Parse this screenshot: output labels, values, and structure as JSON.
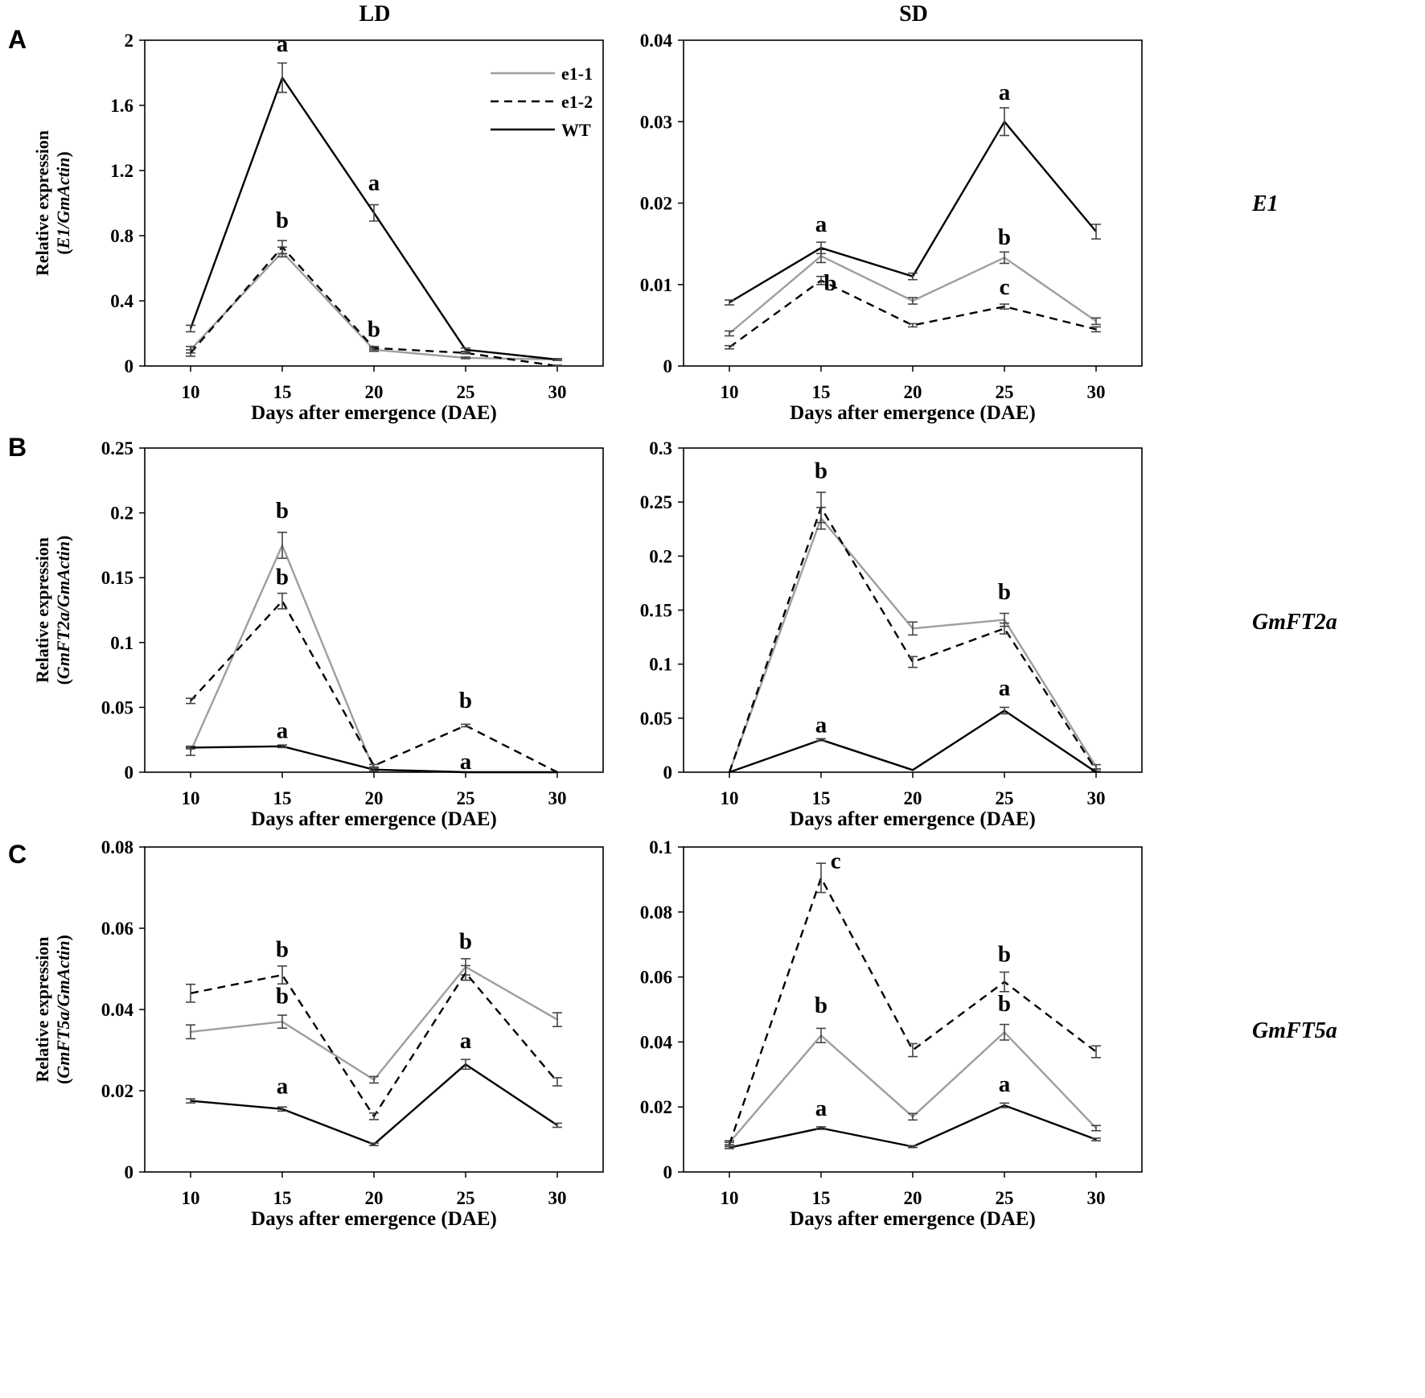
{
  "column_titles": {
    "left": "LD",
    "right": "SD"
  },
  "panel_letters": [
    "A",
    "B",
    "C"
  ],
  "gene_labels": [
    "E1",
    "GmFT2a",
    "GmFT5a"
  ],
  "legend": [
    {
      "name": "e1-1",
      "style": "solid",
      "color": "#9e9e9e"
    },
    {
      "name": "e1-2",
      "style": "dashed",
      "color": "#000000"
    },
    {
      "name": "WT",
      "style": "solid",
      "color": "#000000"
    }
  ],
  "ylabel_prefix": "Relative expression",
  "chart_data": [
    {
      "id": "A-LD",
      "type": "line",
      "panel": "A",
      "condition": "LD",
      "gene": "E1",
      "xlabel": "Days after emergence (DAE)",
      "ylabel": "Relative expression (E1/GmActin)",
      "ylabel_gene": "E1",
      "ylabel_ref": "GmActin",
      "x": [
        10,
        15,
        20,
        25,
        30
      ],
      "ylim": [
        0,
        2
      ],
      "yticks": [
        0,
        0.4,
        0.8,
        1.2,
        1.6,
        2
      ],
      "ytick_labels": [
        "0",
        "0.4",
        "0.8",
        "1.2",
        "1.6",
        "2"
      ],
      "series": [
        {
          "name": "e1-1",
          "values": [
            0.1,
            0.7,
            0.1,
            0.05,
            0.04
          ],
          "errors": [
            0.02,
            0.03,
            0.01,
            0.005,
            0.005
          ]
        },
        {
          "name": "e1-2",
          "values": [
            0.08,
            0.73,
            0.11,
            0.08,
            0.0
          ],
          "errors": [
            0.02,
            0.04,
            0.01,
            0.005,
            0.005
          ]
        },
        {
          "name": "WT",
          "values": [
            0.23,
            1.77,
            0.94,
            0.1,
            0.04
          ],
          "errors": [
            0.02,
            0.09,
            0.05,
            0.01,
            0.005
          ]
        }
      ],
      "annotations": [
        {
          "text": "a",
          "x": 15,
          "y": 1.93
        },
        {
          "text": "b",
          "x": 15,
          "y": 0.85
        },
        {
          "text": "a",
          "x": 20,
          "y": 1.08
        },
        {
          "text": "b",
          "x": 20,
          "y": 0.18
        }
      ]
    },
    {
      "id": "A-SD",
      "type": "line",
      "panel": "A",
      "condition": "SD",
      "gene": "E1",
      "xlabel": "Days after emergence (DAE)",
      "ylabel": "",
      "x": [
        10,
        15,
        20,
        25,
        30
      ],
      "ylim": [
        0,
        0.04
      ],
      "yticks": [
        0,
        0.01,
        0.02,
        0.03,
        0.04
      ],
      "ytick_labels": [
        "0",
        "0.01",
        "0.02",
        "0.03",
        "0.04"
      ],
      "series": [
        {
          "name": "e1-1",
          "values": [
            0.004,
            0.0135,
            0.008,
            0.0133,
            0.0055
          ],
          "errors": [
            0.0003,
            0.0008,
            0.0004,
            0.0007,
            0.0004
          ]
        },
        {
          "name": "e1-2",
          "values": [
            0.0023,
            0.0105,
            0.005,
            0.0073,
            0.0045
          ],
          "errors": [
            0.0002,
            0.0005,
            0.0002,
            0.0003,
            0.0003
          ]
        },
        {
          "name": "WT",
          "values": [
            0.0078,
            0.0145,
            0.011,
            0.03,
            0.0165
          ],
          "errors": [
            0.0003,
            0.0007,
            0.0004,
            0.0017,
            0.0009
          ]
        }
      ],
      "annotations": [
        {
          "text": "a",
          "x": 15,
          "y": 0.0165
        },
        {
          "text": "b",
          "x": 15.5,
          "y": 0.0093
        },
        {
          "text": "a",
          "x": 25,
          "y": 0.0327
        },
        {
          "text": "b",
          "x": 25,
          "y": 0.0149
        },
        {
          "text": "c",
          "x": 25,
          "y": 0.0088
        }
      ]
    },
    {
      "id": "B-LD",
      "type": "line",
      "panel": "B",
      "condition": "LD",
      "gene": "GmFT2a",
      "xlabel": "Days after emergence (DAE)",
      "ylabel": "Relative expression (GmFT2a/GmActin)",
      "ylabel_gene": "GmFT2a",
      "ylabel_ref": "GmActin",
      "x": [
        10,
        15,
        20,
        25,
        30
      ],
      "ylim": [
        0,
        0.25
      ],
      "yticks": [
        0,
        0.05,
        0.1,
        0.15,
        0.2,
        0.25
      ],
      "ytick_labels": [
        "0",
        "0.05",
        "0.1",
        "0.15",
        "0.2",
        "0.25"
      ],
      "series": [
        {
          "name": "e1-1",
          "values": [
            0.016,
            0.175,
            0.002,
            0.0,
            0.0
          ],
          "errors": [
            0.003,
            0.01,
            0.001,
            0.0,
            0.0
          ]
        },
        {
          "name": "e1-2",
          "values": [
            0.055,
            0.132,
            0.005,
            0.036,
            0.0
          ],
          "errors": [
            0.002,
            0.006,
            0.001,
            0.001,
            0.0
          ]
        },
        {
          "name": "WT",
          "values": [
            0.019,
            0.02,
            0.002,
            0.0,
            0.0
          ],
          "errors": [
            0.001,
            0.001,
            0.001,
            0.0,
            0.0
          ]
        }
      ],
      "annotations": [
        {
          "text": "b",
          "x": 15,
          "y": 0.196
        },
        {
          "text": "b",
          "x": 15,
          "y": 0.145
        },
        {
          "text": "a",
          "x": 15,
          "y": 0.0265
        },
        {
          "text": "b",
          "x": 25,
          "y": 0.0495
        },
        {
          "text": "a",
          "x": 25,
          "y": 0.0025
        }
      ]
    },
    {
      "id": "B-SD",
      "type": "line",
      "panel": "B",
      "condition": "SD",
      "gene": "GmFT2a",
      "xlabel": "Days after emergence (DAE)",
      "ylabel": "",
      "x": [
        10,
        15,
        20,
        25,
        30
      ],
      "ylim": [
        0,
        0.3
      ],
      "yticks": [
        0,
        0.05,
        0.1,
        0.15,
        0.2,
        0.25,
        0.3
      ],
      "ytick_labels": [
        "0",
        "0.05",
        "0.1",
        "0.15",
        "0.2",
        "0.25",
        "0.3"
      ],
      "series": [
        {
          "name": "e1-1",
          "values": [
            0.0,
            0.235,
            0.133,
            0.141,
            0.005
          ],
          "errors": [
            0.0,
            0.01,
            0.006,
            0.006,
            0.002
          ]
        },
        {
          "name": "e1-2",
          "values": [
            0.0,
            0.245,
            0.102,
            0.133,
            0.002
          ],
          "errors": [
            0.0,
            0.014,
            0.005,
            0.005,
            0.001
          ]
        },
        {
          "name": "WT",
          "values": [
            0.0,
            0.03,
            0.002,
            0.057,
            0.0
          ],
          "errors": [
            0.0,
            0.001,
            0.0,
            0.003,
            0.0
          ]
        }
      ],
      "annotations": [
        {
          "text": "b",
          "x": 15,
          "y": 0.272
        },
        {
          "text": "b",
          "x": 25,
          "y": 0.16
        },
        {
          "text": "a",
          "x": 15,
          "y": 0.037
        },
        {
          "text": "a",
          "x": 25,
          "y": 0.071
        }
      ]
    },
    {
      "id": "C-LD",
      "type": "line",
      "panel": "C",
      "condition": "LD",
      "gene": "GmFT5a",
      "xlabel": "Days after emergence (DAE)",
      "ylabel": "Relative expression (GmFT5a/GmActin)",
      "ylabel_gene": "GmFT5a",
      "ylabel_ref": "GmActin",
      "x": [
        10,
        15,
        20,
        25,
        30
      ],
      "ylim": [
        0,
        0.08
      ],
      "yticks": [
        0,
        0.02,
        0.04,
        0.06,
        0.08
      ],
      "ytick_labels": [
        "0",
        "0.02",
        "0.04",
        "0.06",
        "0.08"
      ],
      "series": [
        {
          "name": "e1-1",
          "values": [
            0.0345,
            0.037,
            0.0227,
            0.0505,
            0.0375
          ],
          "errors": [
            0.0017,
            0.0016,
            0.0008,
            0.002,
            0.0017
          ]
        },
        {
          "name": "e1-2",
          "values": [
            0.044,
            0.0485,
            0.0137,
            0.049,
            0.0222
          ],
          "errors": [
            0.0022,
            0.0022,
            0.0008,
            0.0018,
            0.001
          ]
        },
        {
          "name": "WT",
          "values": [
            0.0175,
            0.0155,
            0.0068,
            0.0265,
            0.0115
          ],
          "errors": [
            0.0005,
            0.0005,
            0.0003,
            0.0012,
            0.0005
          ]
        }
      ],
      "annotations": [
        {
          "text": "b",
          "x": 15,
          "y": 0.053
        },
        {
          "text": "b",
          "x": 15,
          "y": 0.0415
        },
        {
          "text": "a",
          "x": 15,
          "y": 0.0193
        },
        {
          "text": "b",
          "x": 25,
          "y": 0.055
        },
        {
          "text": "a",
          "x": 25,
          "y": 0.0305
        }
      ]
    },
    {
      "id": "C-SD",
      "type": "line",
      "panel": "C",
      "condition": "SD",
      "gene": "GmFT5a",
      "xlabel": "Days after emergence (DAE)",
      "ylabel": "",
      "x": [
        10,
        15,
        20,
        25,
        30
      ],
      "ylim": [
        0,
        0.1
      ],
      "yticks": [
        0,
        0.02,
        0.04,
        0.06,
        0.08,
        0.1
      ],
      "ytick_labels": [
        "0",
        "0.02",
        "0.04",
        "0.06",
        "0.08",
        "0.1"
      ],
      "series": [
        {
          "name": "e1-1",
          "values": [
            0.009,
            0.042,
            0.017,
            0.043,
            0.0135
          ],
          "errors": [
            0.0006,
            0.0022,
            0.001,
            0.0024,
            0.0008
          ]
        },
        {
          "name": "e1-2",
          "values": [
            0.0085,
            0.0905,
            0.0375,
            0.0585,
            0.037
          ],
          "errors": [
            0.0006,
            0.0045,
            0.002,
            0.003,
            0.0018
          ]
        },
        {
          "name": "WT",
          "values": [
            0.0075,
            0.0135,
            0.0078,
            0.0205,
            0.01
          ],
          "errors": [
            0.0003,
            0.0004,
            0.0003,
            0.0007,
            0.0004
          ]
        }
      ],
      "annotations": [
        {
          "text": "c",
          "x": 15.8,
          "y": 0.0935
        },
        {
          "text": "b",
          "x": 15,
          "y": 0.049
        },
        {
          "text": "a",
          "x": 15,
          "y": 0.0173
        },
        {
          "text": "b",
          "x": 25,
          "y": 0.0647
        },
        {
          "text": "b",
          "x": 25,
          "y": 0.0495
        },
        {
          "text": "a",
          "x": 25,
          "y": 0.0247
        }
      ]
    }
  ]
}
